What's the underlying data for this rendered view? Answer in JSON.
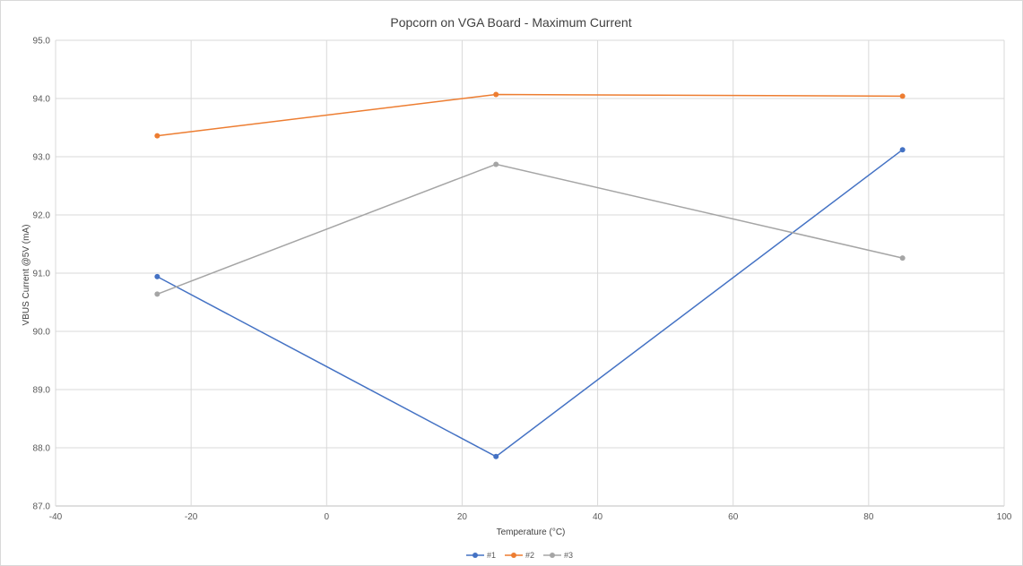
{
  "chart_data": {
    "type": "scatter",
    "title": "Popcorn on VGA Board - Maximum Current",
    "xlabel": "Temperature (°C)",
    "ylabel": "VBUS Current @5V (mA)",
    "xlim": [
      -40,
      100
    ],
    "ylim": [
      87.0,
      95.0
    ],
    "x_ticks": [
      "-40",
      "-20",
      "0",
      "20",
      "40",
      "60",
      "80",
      "100"
    ],
    "y_ticks": [
      "87.0",
      "88.0",
      "89.0",
      "90.0",
      "91.0",
      "92.0",
      "93.0",
      "94.0",
      "95.0"
    ],
    "grid": true,
    "legend_position": "bottom",
    "series": [
      {
        "name": "#1",
        "color": "#4472c4",
        "x": [
          -25,
          25,
          85
        ],
        "y": [
          90.94,
          87.85,
          93.12
        ]
      },
      {
        "name": "#2",
        "color": "#ed7d31",
        "x": [
          -25,
          25,
          85
        ],
        "y": [
          93.36,
          94.07,
          94.04
        ]
      },
      {
        "name": "#3",
        "color": "#a5a5a5",
        "x": [
          -25,
          25,
          85
        ],
        "y": [
          90.64,
          92.87,
          91.26
        ]
      }
    ]
  }
}
